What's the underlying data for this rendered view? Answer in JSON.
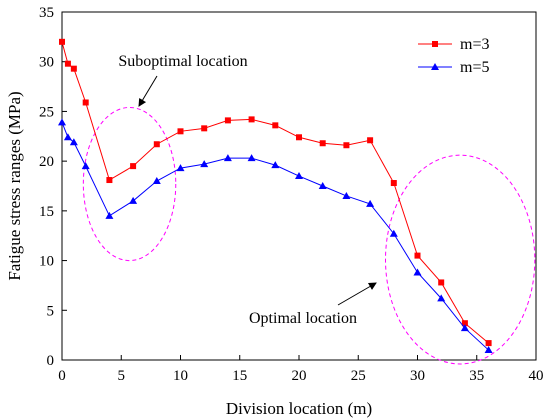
{
  "chart_data": {
    "type": "line",
    "xlabel": "Division location (m)",
    "ylabel": "Fatigue stress ranges (MPa)",
    "xlim": [
      0,
      40
    ],
    "ylim": [
      0,
      35
    ],
    "xticks": [
      0,
      5,
      10,
      15,
      20,
      25,
      30,
      35,
      40
    ],
    "yticks": [
      0,
      5,
      10,
      15,
      20,
      25,
      30,
      35
    ],
    "grid": false,
    "legend_position": "top-right",
    "series": [
      {
        "name": "m=3",
        "color": "#ff0000",
        "marker": "square",
        "x": [
          0,
          0.5,
          1,
          2,
          4,
          6,
          8,
          10,
          12,
          14,
          16,
          18,
          20,
          22,
          24,
          26,
          28,
          30,
          32,
          34,
          36
        ],
        "y": [
          32.0,
          29.8,
          29.3,
          25.9,
          18.1,
          19.5,
          21.7,
          23.0,
          23.3,
          24.1,
          24.2,
          23.6,
          22.4,
          21.8,
          21.6,
          22.1,
          17.8,
          10.5,
          7.8,
          3.7,
          1.7
        ]
      },
      {
        "name": "m=5",
        "color": "#0000ff",
        "marker": "triangle",
        "x": [
          0,
          0.5,
          1,
          2,
          4,
          6,
          8,
          10,
          12,
          14,
          16,
          18,
          20,
          22,
          24,
          26,
          28,
          30,
          32,
          34,
          36
        ],
        "y": [
          23.9,
          22.4,
          21.9,
          19.5,
          14.5,
          16.0,
          18.0,
          19.3,
          19.7,
          20.3,
          20.3,
          19.6,
          18.5,
          17.5,
          16.5,
          15.7,
          12.7,
          8.8,
          6.2,
          3.2,
          1.0
        ]
      }
    ],
    "annotations": [
      {
        "text": "Suboptimal location",
        "anchor_x": 6,
        "anchor_y": 25.4
      },
      {
        "text": "Optimal location",
        "anchor_x": 30.5,
        "anchor_y": 7.5
      }
    ],
    "ellipses": [
      {
        "color": "#ff00ff",
        "cx": 5.7,
        "cy": 17.7,
        "rx": 3.9,
        "ry": 7.7
      },
      {
        "color": "#ff00ff",
        "cx": 33.6,
        "cy": 10.1,
        "rx": 6.3,
        "ry": 10.5
      }
    ]
  }
}
